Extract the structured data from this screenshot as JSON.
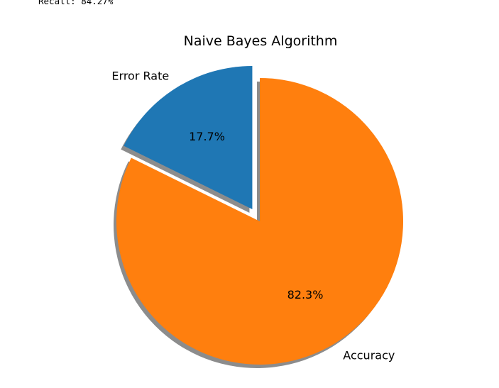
{
  "console": {
    "recall_line": "Recall: 84.27%"
  },
  "chart_data": {
    "type": "pie",
    "title": "Naive Bayes Algorithm",
    "slices": [
      {
        "label": "Error Rate",
        "value": 17.7,
        "pct_label": "17.7%",
        "color": "#1f77b4",
        "exploded": true
      },
      {
        "label": "Accuracy",
        "value": 82.3,
        "pct_label": "82.3%",
        "color": "#ff7f0e",
        "exploded": false
      }
    ],
    "shadow": true,
    "start_angle_deg": 90,
    "direction": "counterclockwise"
  }
}
